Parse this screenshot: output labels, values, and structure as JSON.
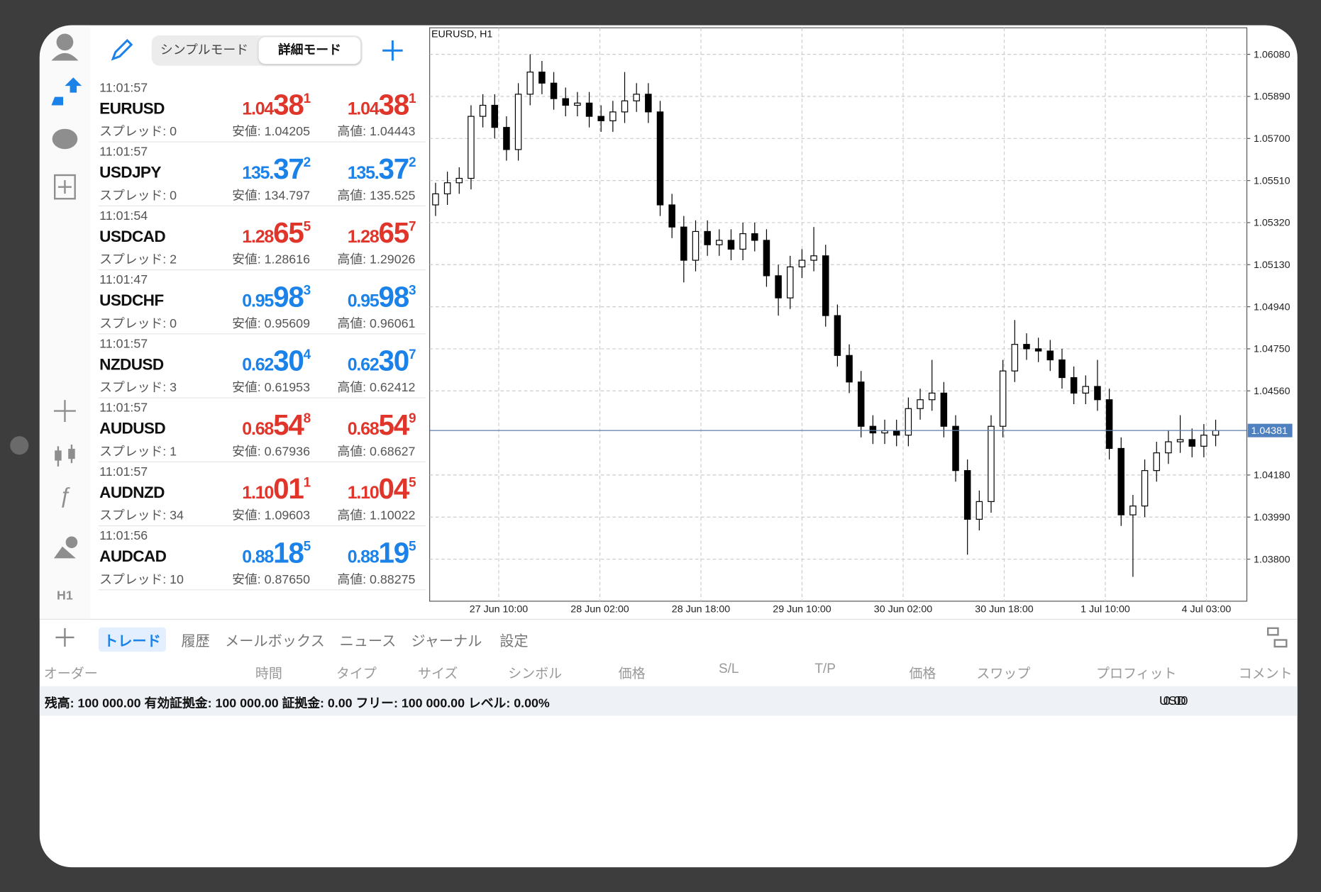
{
  "toolbar": {
    "modes": [
      "シンプルモード",
      "詳細モード"
    ],
    "active_mode": 1
  },
  "quotes": [
    {
      "time": "11:01:57",
      "symbol": "EURUSD",
      "spread": "スプレッド: 0",
      "bid": [
        "1.04",
        "38",
        "1"
      ],
      "ask": [
        "1.04",
        "38",
        "1"
      ],
      "low": "安値: 1.04205",
      "high": "高値: 1.04443",
      "color": "#e0352b"
    },
    {
      "time": "11:01:57",
      "symbol": "USDJPY",
      "spread": "スプレッド: 0",
      "bid": [
        "135.",
        "37",
        "2"
      ],
      "ask": [
        "135.",
        "37",
        "2"
      ],
      "low": "安値: 134.797",
      "high": "高値: 135.525",
      "color": "#1a82e8"
    },
    {
      "time": "11:01:54",
      "symbol": "USDCAD",
      "spread": "スプレッド: 2",
      "bid": [
        "1.28",
        "65",
        "5"
      ],
      "ask": [
        "1.28",
        "65",
        "7"
      ],
      "low": "安値: 1.28616",
      "high": "高値: 1.29026",
      "color": "#e0352b"
    },
    {
      "time": "11:01:47",
      "symbol": "USDCHF",
      "spread": "スプレッド: 0",
      "bid": [
        "0.95",
        "98",
        "3"
      ],
      "ask": [
        "0.95",
        "98",
        "3"
      ],
      "low": "安値: 0.95609",
      "high": "高値: 0.96061",
      "color": "#1a82e8"
    },
    {
      "time": "11:01:57",
      "symbol": "NZDUSD",
      "spread": "スプレッド: 3",
      "bid": [
        "0.62",
        "30",
        "4"
      ],
      "ask": [
        "0.62",
        "30",
        "7"
      ],
      "low": "安値: 0.61953",
      "high": "高値: 0.62412",
      "color": "#1a82e8"
    },
    {
      "time": "11:01:57",
      "symbol": "AUDUSD",
      "spread": "スプレッド: 1",
      "bid": [
        "0.68",
        "54",
        "8"
      ],
      "ask": [
        "0.68",
        "54",
        "9"
      ],
      "low": "安値: 0.67936",
      "high": "高値: 0.68627",
      "color": "#e0352b"
    },
    {
      "time": "11:01:57",
      "symbol": "AUDNZD",
      "spread": "スプレッド: 34",
      "bid": [
        "1.10",
        "01",
        "1"
      ],
      "ask": [
        "1.10",
        "04",
        "5"
      ],
      "low": "安値: 1.09603",
      "high": "高値: 1.10022",
      "color": "#e0352b"
    },
    {
      "time": "11:01:56",
      "symbol": "AUDCAD",
      "spread": "スプレッド: 10",
      "bid": [
        "0.88",
        "18",
        "5"
      ],
      "ask": [
        "0.88",
        "19",
        "5"
      ],
      "low": "安値: 0.87650",
      "high": "高値: 0.88275",
      "color": "#1a82e8"
    }
  ],
  "sidebar": {
    "timeframe": "H1"
  },
  "chart_data": {
    "type": "candlestick",
    "title": "EURUSD, H1",
    "x_labels": [
      "27 Jun 10:00",
      "28 Jun 02:00",
      "28 Jun 18:00",
      "29 Jun 10:00",
      "30 Jun 02:00",
      "30 Jun 18:00",
      "1 Jul 10:00",
      "4 Jul 03:00"
    ],
    "open": [
      1.054,
      1.0545,
      1.055,
      1.0552,
      1.058,
      1.0585,
      1.0575,
      1.0565,
      1.059,
      1.06,
      1.0595,
      1.0588,
      1.0585,
      1.0586,
      1.058,
      1.0578,
      1.0582,
      1.0587,
      1.059,
      1.0582,
      1.054,
      1.053,
      1.0515,
      1.0528,
      1.0522,
      1.0524,
      1.052,
      1.0527,
      1.0524,
      1.0508,
      1.0498,
      1.0512,
      1.0515,
      1.0517,
      1.049,
      1.0472,
      1.046,
      1.044,
      1.0437,
      1.0438,
      1.0436,
      1.0448,
      1.0452,
      1.0455,
      1.044,
      1.042,
      1.0398,
      1.0406,
      1.044,
      1.0465,
      1.0477,
      1.0475,
      1.0474,
      1.047,
      1.0462,
      1.0455,
      1.0458,
      1.0452,
      1.043,
      1.04,
      1.0404,
      1.042,
      1.0428,
      1.0433,
      1.0434,
      1.0431,
      1.0436
    ],
    "high": [
      1.055,
      1.0555,
      1.0557,
      1.0585,
      1.059,
      1.059,
      1.058,
      1.0595,
      1.0608,
      1.0605,
      1.06,
      1.0593,
      1.0591,
      1.0591,
      1.0585,
      1.0587,
      1.06,
      1.0595,
      1.0595,
      1.0587,
      1.0545,
      1.0535,
      1.0533,
      1.0533,
      1.0529,
      1.0529,
      1.0532,
      1.0532,
      1.0529,
      1.0513,
      1.0517,
      1.052,
      1.053,
      1.0522,
      1.0495,
      1.0477,
      1.0465,
      1.0445,
      1.0443,
      1.0443,
      1.0453,
      1.0457,
      1.047,
      1.046,
      1.0445,
      1.0425,
      1.0411,
      1.0445,
      1.047,
      1.0488,
      1.0482,
      1.048,
      1.0479,
      1.0475,
      1.0467,
      1.0463,
      1.047,
      1.0457,
      1.0435,
      1.0409,
      1.0425,
      1.0433,
      1.0438,
      1.0445,
      1.0439,
      1.0441,
      1.0443
    ],
    "low": [
      1.0535,
      1.054,
      1.0545,
      1.0547,
      1.0575,
      1.057,
      1.056,
      1.056,
      1.0585,
      1.059,
      1.0583,
      1.058,
      1.058,
      1.0575,
      1.0573,
      1.0573,
      1.0577,
      1.0582,
      1.0577,
      1.0535,
      1.0525,
      1.0505,
      1.051,
      1.0517,
      1.0517,
      1.0515,
      1.0515,
      1.0519,
      1.0503,
      1.049,
      1.0493,
      1.0507,
      1.051,
      1.0485,
      1.0467,
      1.0455,
      1.0435,
      1.0432,
      1.0432,
      1.0431,
      1.0431,
      1.0443,
      1.0447,
      1.0435,
      1.0415,
      1.0382,
      1.0393,
      1.0401,
      1.0435,
      1.046,
      1.047,
      1.0469,
      1.0465,
      1.0457,
      1.045,
      1.045,
      1.0447,
      1.0425,
      1.0395,
      1.0372,
      1.0399,
      1.0415,
      1.0423,
      1.0428,
      1.0426,
      1.0426,
      1.0431
    ],
    "close": [
      1.0545,
      1.055,
      1.0552,
      1.058,
      1.0585,
      1.0575,
      1.0565,
      1.059,
      1.06,
      1.0595,
      1.0588,
      1.0585,
      1.0586,
      1.058,
      1.0578,
      1.0582,
      1.0587,
      1.059,
      1.0582,
      1.054,
      1.053,
      1.0515,
      1.0528,
      1.0522,
      1.0524,
      1.052,
      1.0527,
      1.0524,
      1.0508,
      1.0498,
      1.0512,
      1.0515,
      1.0517,
      1.049,
      1.0472,
      1.046,
      1.044,
      1.0437,
      1.0438,
      1.0436,
      1.0448,
      1.0452,
      1.0455,
      1.044,
      1.042,
      1.0398,
      1.0406,
      1.044,
      1.0465,
      1.0477,
      1.0475,
      1.0474,
      1.047,
      1.0462,
      1.0455,
      1.0458,
      1.0452,
      1.043,
      1.04,
      1.0404,
      1.042,
      1.0428,
      1.0433,
      1.0434,
      1.0431,
      1.0436,
      1.04381
    ],
    "ylim": [
      1.0361,
      1.062
    ],
    "yticks": [
      {
        "value": 1.0608,
        "label": "1.06080"
      },
      {
        "value": 1.0589,
        "label": "1.05890"
      },
      {
        "value": 1.057,
        "label": "1.05700"
      },
      {
        "value": 1.0551,
        "label": "1.05510"
      },
      {
        "value": 1.0532,
        "label": "1.05320"
      },
      {
        "value": 1.0513,
        "label": "1.05130"
      },
      {
        "value": 1.0494,
        "label": "1.04940"
      },
      {
        "value": 1.0475,
        "label": "1.04750"
      },
      {
        "value": 1.0456,
        "label": "1.04560"
      },
      {
        "value": 1.0418,
        "label": "1.04180"
      },
      {
        "value": 1.0399,
        "label": "1.03990"
      },
      {
        "value": 1.038,
        "label": "1.03800"
      }
    ],
    "current_price": 1.04381,
    "grid": true,
    "up_color": "#ffffff",
    "down_color": "#000000"
  },
  "terminal": {
    "tabs": [
      "トレード",
      "履歴",
      "メールボックス",
      "ニュース",
      "ジャーナル",
      "設定"
    ],
    "active_tab": 0,
    "columns": [
      "オーダー",
      "時間",
      "タイプ",
      "サイズ",
      "シンボル",
      "価格",
      "S/L",
      "T/P",
      "価格",
      "スワップ",
      "プロフィット",
      "コメント"
    ],
    "account": "残高: 100 000.00 有効証拠金: 100 000.00 証拠金: 0.00 フリー: 100 000.00 レベル: 0.00%",
    "profit": "0.00",
    "currency": "USD"
  }
}
